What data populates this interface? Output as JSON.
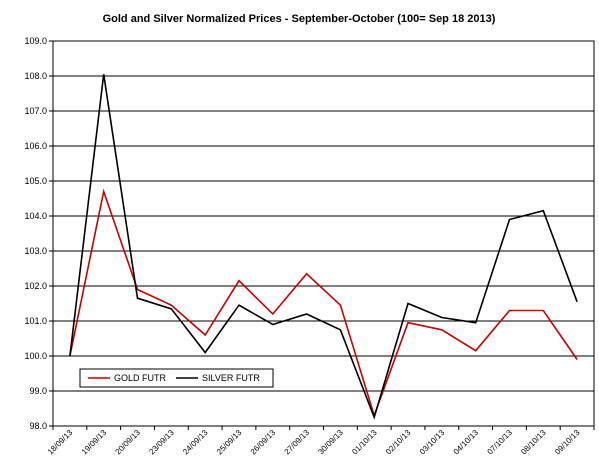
{
  "chart_data": {
    "type": "line",
    "title": "Gold and Silver Normalized Prices - September-October  (100= Sep 18 2013)",
    "xlabel": "",
    "ylabel": "",
    "categories": [
      "18/09/13",
      "19/09/13",
      "20/09/13",
      "23/09/13",
      "24/09/13",
      "25/09/13",
      "26/09/13",
      "27/09/13",
      "30/09/13",
      "01/10/13",
      "02/10/13",
      "03/10/13",
      "04/10/13",
      "07/10/13",
      "08/10/13",
      "09/10/13"
    ],
    "ylim": [
      98.0,
      109.0
    ],
    "yticks": [
      "98.0",
      "99.0",
      "100.0",
      "101.0",
      "102.0",
      "103.0",
      "104.0",
      "105.0",
      "106.0",
      "107.0",
      "108.0",
      "109.0"
    ],
    "grid": true,
    "legend_position": "bottom-left",
    "series": [
      {
        "name": "GOLD  FUTR",
        "color": "#cc0000",
        "values": [
          100.0,
          104.7,
          101.9,
          101.45,
          100.6,
          102.15,
          101.2,
          102.35,
          101.45,
          98.3,
          100.95,
          100.75,
          100.15,
          101.3,
          101.3,
          99.9
        ]
      },
      {
        "name": "SILVER  FUTR",
        "color": "#000000",
        "values": [
          100.0,
          108.05,
          101.65,
          101.35,
          100.1,
          101.45,
          100.9,
          101.2,
          100.75,
          98.25,
          101.5,
          101.1,
          100.95,
          103.9,
          104.15,
          101.55
        ]
      }
    ]
  }
}
